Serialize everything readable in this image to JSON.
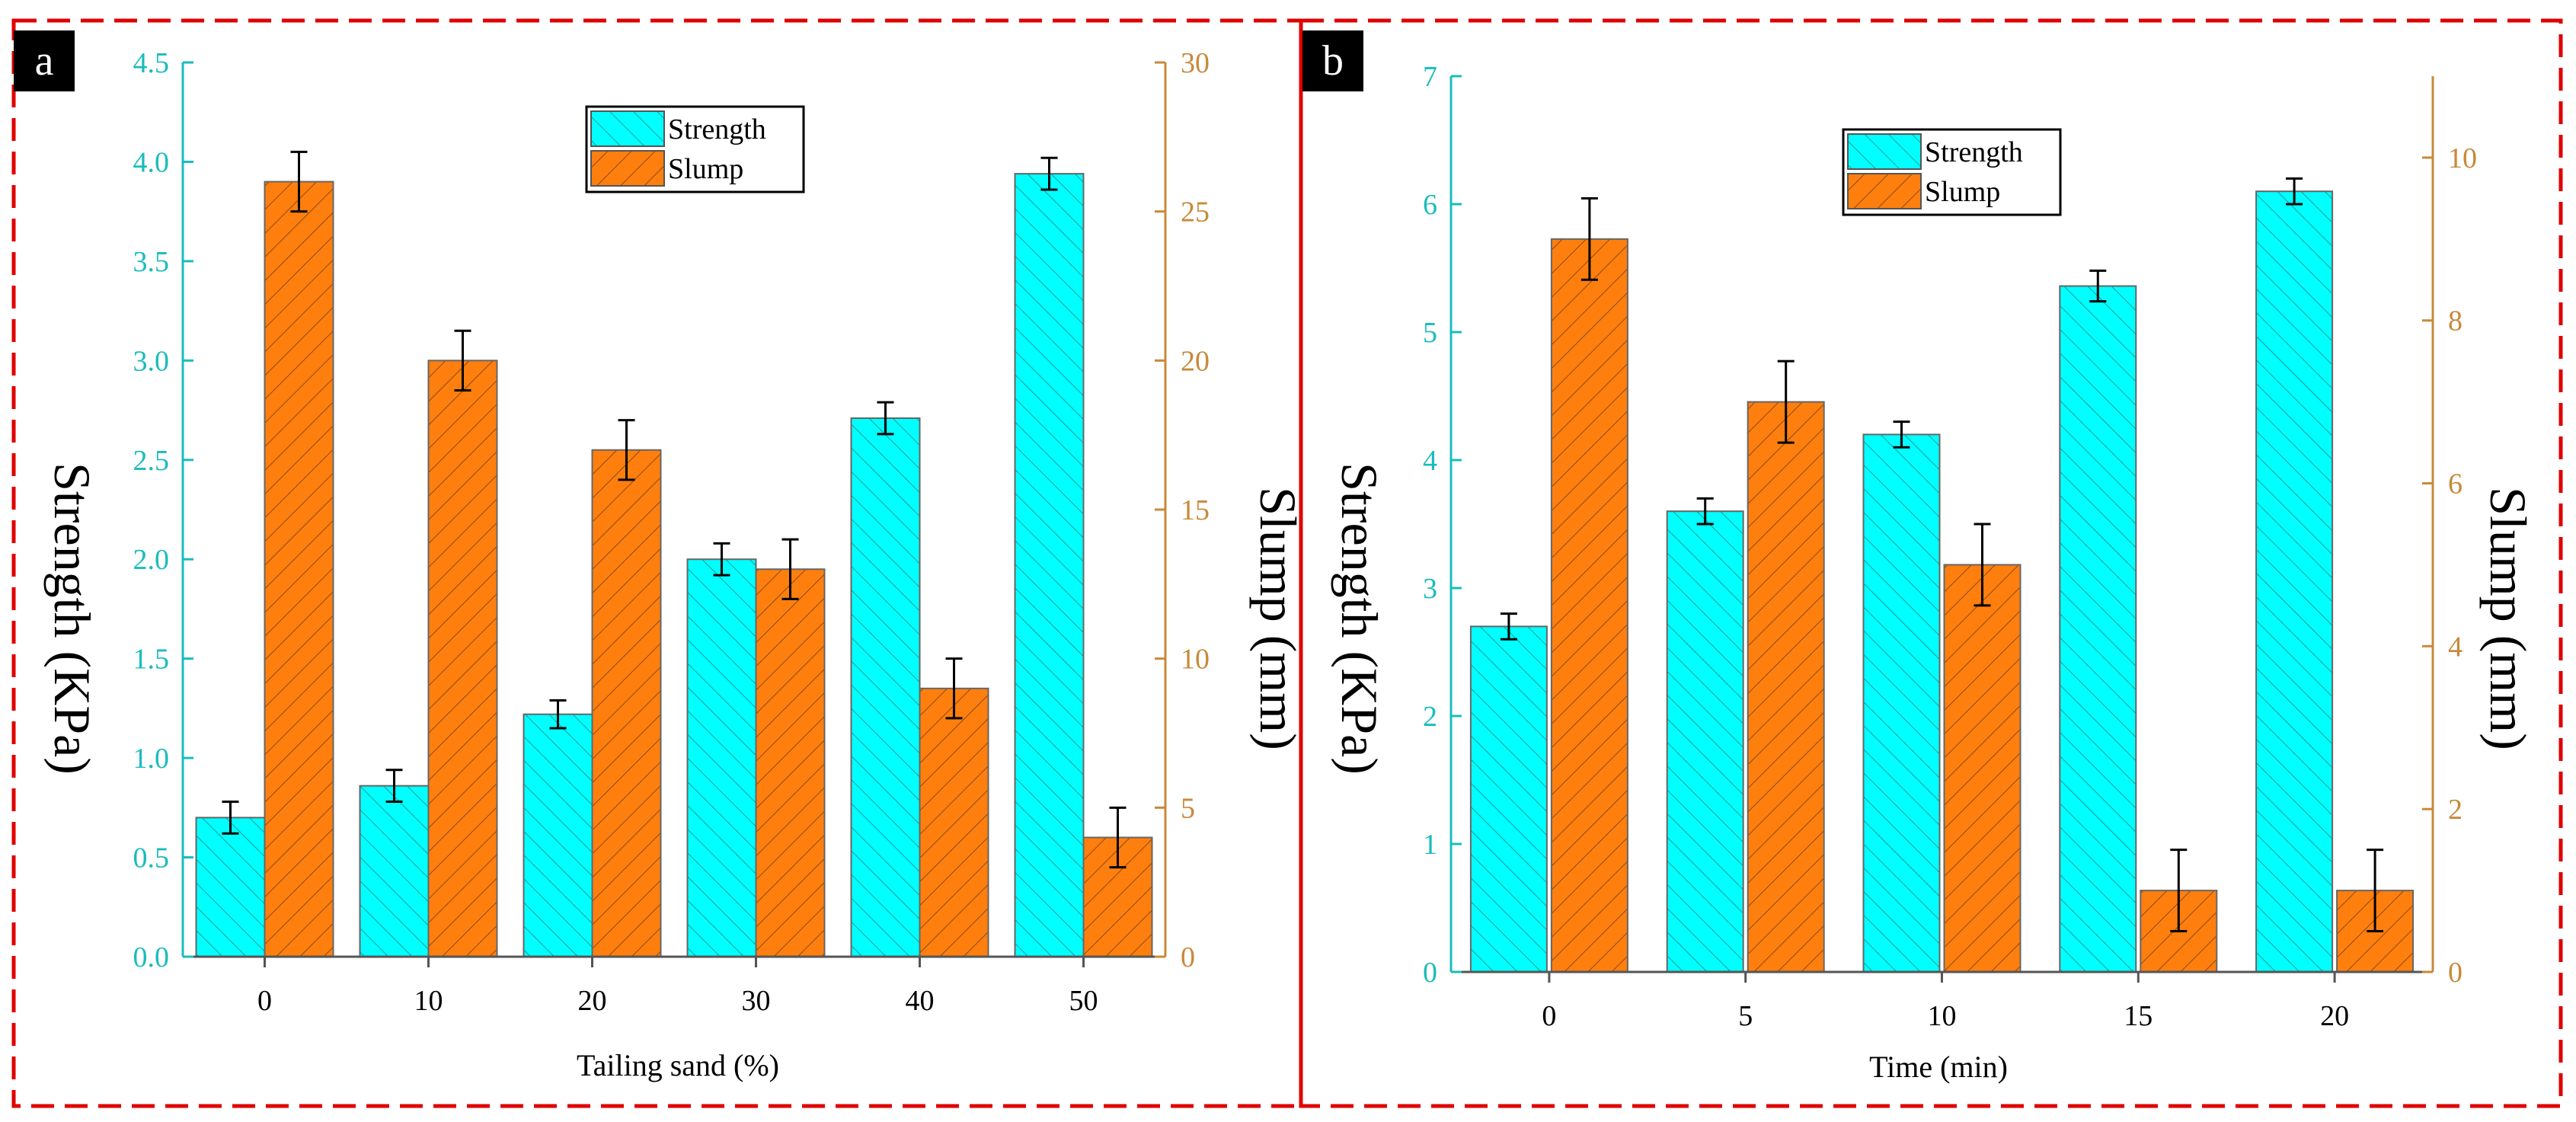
{
  "colors": {
    "strength": "#00FFFF",
    "slump": "#FF7F0E",
    "left_axis": "#1ABCBC",
    "right_axis": "#C8893A",
    "panel_border": "#E00000"
  },
  "chart_data": [
    {
      "type": "bar",
      "panel_label": "a",
      "xlabel": "Tailing sand (%)",
      "ylabel_left": "Strength (KPa)",
      "ylabel_right": "Slump (mm)",
      "categories": [
        "0",
        "10",
        "20",
        "30",
        "40",
        "50"
      ],
      "ylim_left": [
        0,
        4.5
      ],
      "ylim_right": [
        0,
        30
      ],
      "yticks_left": [
        "0.0",
        "0.5",
        "1.0",
        "1.5",
        "2.0",
        "2.5",
        "3.0",
        "3.5",
        "4.0",
        "4.5"
      ],
      "yticks_right": [
        "0",
        "5",
        "10",
        "15",
        "20",
        "25",
        "30"
      ],
      "legend": [
        "Strength",
        "Slump"
      ],
      "legend_position": "top-center",
      "series": [
        {
          "name": "Strength",
          "axis": "left",
          "values": [
            0.7,
            0.86,
            1.22,
            2.0,
            2.71,
            3.94
          ],
          "errors": [
            0.08,
            0.08,
            0.07,
            0.08,
            0.08,
            0.08
          ]
        },
        {
          "name": "Slump",
          "axis": "right",
          "values": [
            26.0,
            20.0,
            17.0,
            13.0,
            9.0,
            4.0
          ],
          "errors": [
            1.0,
            1.0,
            1.0,
            1.0,
            1.0,
            1.0
          ]
        }
      ]
    },
    {
      "type": "bar",
      "panel_label": "b",
      "xlabel": "Time (min)",
      "ylabel_left": "Strength (KPa)",
      "ylabel_right": "Slump (mm)",
      "categories": [
        "0",
        "5",
        "10",
        "15",
        "20"
      ],
      "ylim_left": [
        0,
        7
      ],
      "ylim_right": [
        0,
        11
      ],
      "yticks_left": [
        "0",
        "1",
        "2",
        "3",
        "4",
        "5",
        "6",
        "7"
      ],
      "yticks_right": [
        "0",
        "2",
        "4",
        "6",
        "8",
        "10"
      ],
      "legend": [
        "Strength",
        "Slump"
      ],
      "legend_position": "top-center",
      "series": [
        {
          "name": "Strength",
          "axis": "left",
          "values": [
            2.7,
            3.6,
            4.2,
            5.36,
            6.1
          ],
          "errors": [
            0.1,
            0.1,
            0.1,
            0.12,
            0.1
          ]
        },
        {
          "name": "Slump",
          "axis": "right",
          "values": [
            9.0,
            7.0,
            5.0,
            1.0,
            1.0
          ],
          "errors": [
            0.5,
            0.5,
            0.5,
            0.5,
            0.5
          ]
        }
      ]
    }
  ]
}
